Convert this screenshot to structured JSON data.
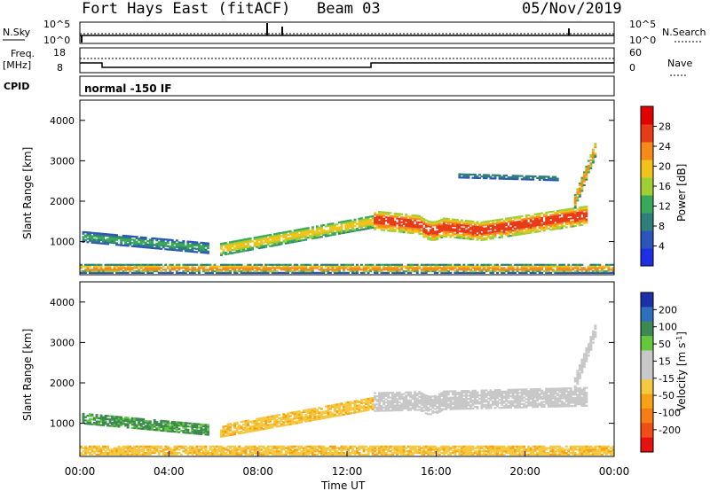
{
  "header": {
    "station": "Fort Hays East (fitACF)",
    "beam": "Beam 03",
    "date": "05/Nov/2019"
  },
  "top_panels": {
    "nsky_label": "N.Sky",
    "nsky_ticks": [
      "10^5",
      "10^0"
    ],
    "nsearch_label": "N.Search",
    "nsearch_ticks": [
      "10^5",
      "10^0"
    ],
    "freq_label_1": "Freq.",
    "freq_label_2": "[MHz]",
    "freq_ticks": [
      "18",
      "8"
    ],
    "nave_label": "Nave",
    "nave_ticks": [
      "60",
      "0"
    ],
    "cpid_label": "CPID",
    "cpid_text": "normal -150 IF"
  },
  "axes": {
    "y_label": "Slant Range [km]",
    "y_ticks": [
      "1000",
      "2000",
      "3000",
      "4000"
    ],
    "x_label": "Time UT",
    "x_ticks": [
      "00:00",
      "04:00",
      "08:00",
      "12:00",
      "16:00",
      "20:00",
      "00:00"
    ]
  },
  "colorbars": {
    "power": {
      "label": "Power [dB]",
      "ticks": [
        "4",
        "8",
        "12",
        "16",
        "20",
        "24",
        "28"
      ],
      "colors": [
        "#1e2ee6",
        "#2b55b8",
        "#2e7f7a",
        "#3aa85a",
        "#9fcf35",
        "#f2c21a",
        "#f58a1a",
        "#e83b18",
        "#e30000"
      ]
    },
    "velocity": {
      "label_main": "Velocity [m s",
      "label_sup": "-1",
      "label_end": "]",
      "ticks": [
        "200",
        "100",
        "50",
        "15",
        "-15",
        "-50",
        "-100",
        "-200"
      ],
      "colors": [
        "#1c2fa8",
        "#2e6fbd",
        "#3c8a52",
        "#64c83c",
        "#a6e06a",
        "#c8c8c8",
        "#f5c842",
        "#f5a214",
        "#f57d14",
        "#f04e14",
        "#e81010"
      ]
    }
  },
  "chart_data": {
    "type": "heatmap",
    "x_range_hours": [
      0,
      24
    ],
    "y_range_km": [
      180,
      4500
    ],
    "power_bands": [
      {
        "name": "morning-echo",
        "x": [
          0.1,
          5.7
        ],
        "center_km": [
          1110,
          830
        ],
        "half_width_km": 130,
        "value_db": [
          4,
          12
        ]
      },
      {
        "name": "rising-echo",
        "x": [
          6.3,
          13.1
        ],
        "center_km": [
          800,
          1480
        ],
        "half_width_km": 150,
        "value_db": [
          10,
          20
        ]
      },
      {
        "name": "main-echo-low",
        "x": [
          13.2,
          18.0
        ],
        "center_km": [
          1520,
          1250
        ],
        "half_width_km": 230,
        "value_db": [
          14,
          28
        ]
      },
      {
        "name": "main-echo-high",
        "x": [
          18.0,
          22.8
        ],
        "center_km": [
          1250,
          1650
        ],
        "half_width_km": 230,
        "value_db": [
          14,
          28
        ]
      },
      {
        "name": "upper-arc",
        "x": [
          22.2,
          23.2
        ],
        "center_km": [
          2000,
          3400
        ],
        "half_width_km": 180,
        "value_db": [
          8,
          24
        ]
      },
      {
        "name": "far-echo",
        "x": [
          17.0,
          21.5
        ],
        "center_km": [
          2630,
          2560
        ],
        "half_width_km": 60,
        "value_db": [
          4,
          8
        ]
      },
      {
        "name": "ground-near",
        "x": [
          0.0,
          24.0
        ],
        "center_km": [
          320,
          320
        ],
        "half_width_km": 110,
        "value_db": [
          4,
          24
        ]
      }
    ],
    "velocity_bands": [
      {
        "name": "morning-echo",
        "x": [
          0.1,
          5.7
        ],
        "center_km": [
          1110,
          830
        ],
        "half_width_km": 130,
        "value_ms": [
          30,
          100
        ]
      },
      {
        "name": "rising-echo",
        "x": [
          6.3,
          13.1
        ],
        "center_km": [
          800,
          1480
        ],
        "half_width_km": 150,
        "value_ms": [
          -15,
          -60
        ]
      },
      {
        "name": "main-echo",
        "x": [
          13.2,
          22.8
        ],
        "center_km": [
          1520,
          1650
        ],
        "half_width_km": 230,
        "value_ms": [
          -10,
          10
        ]
      },
      {
        "name": "upper-arc",
        "x": [
          22.2,
          23.2
        ],
        "center_km": [
          2000,
          3400
        ],
        "half_width_km": 180,
        "value_ms": [
          -10,
          10
        ]
      },
      {
        "name": "ground-near",
        "x": [
          0.0,
          24.0
        ],
        "center_km": [
          320,
          320
        ],
        "half_width_km": 110,
        "value_ms": [
          -20,
          -60
        ]
      }
    ]
  }
}
